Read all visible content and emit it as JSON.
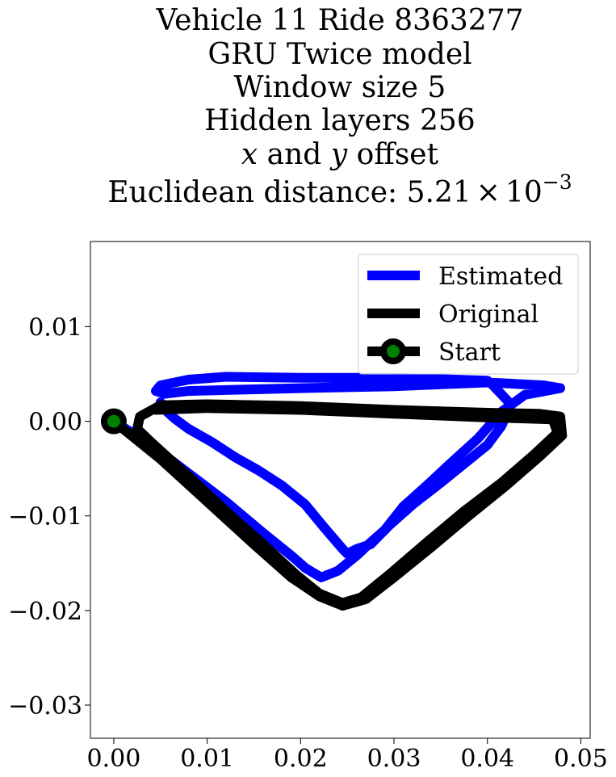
{
  "chart_data": {
    "type": "line",
    "title_lines": [
      "Vehicle 11 Ride 8363277",
      "GRU Twice model",
      "Window size 5",
      "Hidden layers 256"
    ],
    "title_offset_line": {
      "var_x": "x",
      "conj": " and ",
      "var_y": "y",
      "suffix": " offset"
    },
    "title_distance": {
      "prefix": "Euclidean distance: ",
      "mantissa": "5.21",
      "times": "×",
      "base": "10",
      "exponent": "−3"
    },
    "xlabel": "",
    "ylabel": "",
    "xlim": [
      -0.0025,
      0.051
    ],
    "ylim": [
      -0.0335,
      0.019
    ],
    "xticks": [
      {
        "v": 0.0,
        "label": "0.00"
      },
      {
        "v": 0.01,
        "label": "0.01"
      },
      {
        "v": 0.02,
        "label": "0.02"
      },
      {
        "v": 0.03,
        "label": "0.03"
      },
      {
        "v": 0.04,
        "label": "0.04"
      },
      {
        "v": 0.05,
        "label": "0.05"
      }
    ],
    "yticks": [
      {
        "v": 0.01,
        "label": "0.01"
      },
      {
        "v": 0.0,
        "label": "0.00"
      },
      {
        "v": -0.01,
        "label": "−0.01"
      },
      {
        "v": -0.02,
        "label": "−0.02"
      },
      {
        "v": -0.03,
        "label": "−0.03"
      }
    ],
    "grid": false,
    "legend_position": "top-right",
    "series": [
      {
        "name": "Estimated",
        "color": "#0000ff",
        "points": [
          [
            0.0,
            0.0
          ],
          [
            0.004,
            -0.0025
          ],
          [
            0.008,
            -0.0055
          ],
          [
            0.012,
            -0.0085
          ],
          [
            0.016,
            -0.0118
          ],
          [
            0.019,
            -0.0142
          ],
          [
            0.0205,
            -0.0155
          ],
          [
            0.0222,
            -0.0165
          ],
          [
            0.024,
            -0.0158
          ],
          [
            0.026,
            -0.0142
          ],
          [
            0.0275,
            -0.0128
          ],
          [
            0.029,
            -0.0115
          ],
          [
            0.031,
            -0.009
          ],
          [
            0.0335,
            -0.0068
          ],
          [
            0.036,
            -0.0045
          ],
          [
            0.039,
            -0.0018
          ],
          [
            0.0415,
            0.001
          ],
          [
            0.044,
            0.0028
          ],
          [
            0.0478,
            0.0035
          ],
          [
            0.046,
            0.0038
          ],
          [
            0.04,
            0.0041
          ],
          [
            0.03,
            0.0037
          ],
          [
            0.02,
            0.0035
          ],
          [
            0.012,
            0.0033
          ],
          [
            0.008,
            0.0032
          ],
          [
            0.0055,
            0.0029
          ],
          [
            0.0045,
            0.0032
          ],
          [
            0.005,
            0.0038
          ],
          [
            0.008,
            0.0044
          ],
          [
            0.012,
            0.0047
          ],
          [
            0.02,
            0.0046
          ],
          [
            0.03,
            0.0046
          ],
          [
            0.04,
            0.0043
          ],
          [
            0.0405,
            0.0039
          ],
          [
            0.0425,
            0.0018
          ],
          [
            0.0415,
            -0.0005
          ],
          [
            0.04,
            -0.0025
          ],
          [
            0.0375,
            -0.0045
          ],
          [
            0.035,
            -0.0065
          ],
          [
            0.032,
            -0.0088
          ],
          [
            0.0295,
            -0.011
          ],
          [
            0.0275,
            -0.013
          ],
          [
            0.026,
            -0.0135
          ],
          [
            0.025,
            -0.014
          ],
          [
            0.0245,
            -0.0135
          ],
          [
            0.0225,
            -0.0112
          ],
          [
            0.0205,
            -0.0088
          ],
          [
            0.018,
            -0.0068
          ],
          [
            0.0155,
            -0.0052
          ],
          [
            0.013,
            -0.0038
          ],
          [
            0.0105,
            -0.0022
          ],
          [
            0.008,
            -0.0008
          ],
          [
            0.0065,
            0.0003
          ],
          [
            0.0055,
            0.0012
          ],
          [
            0.005,
            0.002
          ]
        ]
      },
      {
        "name": "Original",
        "color": "#000000",
        "points": [
          [
            0.0,
            0.0
          ],
          [
            0.005,
            -0.004
          ],
          [
            0.01,
            -0.0085
          ],
          [
            0.015,
            -0.013
          ],
          [
            0.019,
            -0.0165
          ],
          [
            0.022,
            -0.0185
          ],
          [
            0.0245,
            -0.0195
          ],
          [
            0.027,
            -0.0188
          ],
          [
            0.03,
            -0.0165
          ],
          [
            0.034,
            -0.0133
          ],
          [
            0.038,
            -0.01
          ],
          [
            0.042,
            -0.0068
          ],
          [
            0.0455,
            -0.0038
          ],
          [
            0.048,
            -0.0015
          ],
          [
            0.0478,
            0.0005
          ],
          [
            0.0455,
            0.0008
          ],
          [
            0.04,
            0.0009
          ],
          [
            0.03,
            0.0012
          ],
          [
            0.02,
            0.0016
          ],
          [
            0.01,
            0.0018
          ],
          [
            0.005,
            0.0017
          ],
          [
            0.0028,
            0.0005
          ],
          [
            0.0025,
            -0.0008
          ],
          [
            0.004,
            -0.0022
          ],
          [
            0.008,
            -0.0058
          ],
          [
            0.012,
            -0.0095
          ],
          [
            0.016,
            -0.013
          ],
          [
            0.0195,
            -0.0162
          ],
          [
            0.022,
            -0.0182
          ],
          [
            0.0245,
            -0.0192
          ],
          [
            0.0265,
            -0.0186
          ],
          [
            0.0295,
            -0.0162
          ],
          [
            0.0335,
            -0.0128
          ],
          [
            0.0375,
            -0.0095
          ],
          [
            0.0415,
            -0.0065
          ],
          [
            0.045,
            -0.0035
          ],
          [
            0.0475,
            -0.0012
          ],
          [
            0.047,
            0.0002
          ],
          [
            0.044,
            0.0003
          ],
          [
            0.04,
            0.0004
          ],
          [
            0.03,
            0.0008
          ],
          [
            0.02,
            0.0012
          ],
          [
            0.01,
            0.0014
          ],
          [
            0.0045,
            0.0012
          ]
        ]
      }
    ],
    "start_marker": {
      "name": "Start",
      "x": 0.0,
      "y": 0.0,
      "face_color": "#008000",
      "edge_color": "#000000"
    }
  }
}
